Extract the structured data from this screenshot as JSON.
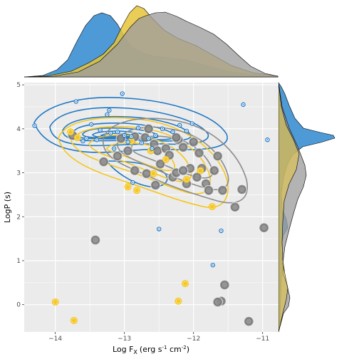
{
  "chart_data": {
    "type": "scatter",
    "title": "",
    "xlabel": "Log F",
    "xlabel_sub": "X",
    "xlabel_unit": "(erg s",
    "xlabel_sup1": "-1",
    "xlabel_mid": " cm",
    "xlabel_sup2": "-2",
    "xlabel_close": ")",
    "ylabel": "LogP (s)",
    "xlim": [
      -14.45,
      -10.77
    ],
    "ylim": [
      -0.62,
      5.05
    ],
    "x_ticks": [
      -14,
      -13,
      -12,
      -11
    ],
    "x_tick_labels": [
      "−14",
      "−13",
      "−12",
      "−11"
    ],
    "y_ticks": [
      0,
      1,
      2,
      3,
      4,
      5
    ],
    "y_tick_labels": [
      "0",
      "1",
      "2",
      "3",
      "4",
      "5"
    ],
    "grid": true,
    "legend": "none",
    "colors": {
      "blue": "#1f77c4",
      "yellow": "#f5c518",
      "gray": "#8c8c8c",
      "panel": "#ebebeb",
      "blue_fill": "#3a8fd1",
      "yellow_fill": "#e6c43a",
      "gray_fill": "#9d9d9d"
    },
    "series": [
      {
        "group": "blue",
        "marker": "small-ring",
        "points": [
          [
            -14.3,
            4.07
          ],
          [
            -13.7,
            4.62
          ],
          [
            -13.03,
            4.8
          ],
          [
            -13.25,
            4.32
          ],
          [
            -13.22,
            4.42
          ],
          [
            -13.48,
            4.1
          ],
          [
            -13.35,
            3.97
          ],
          [
            -13.2,
            3.9
          ],
          [
            -13.1,
            3.93
          ],
          [
            -13.0,
            3.85
          ],
          [
            -12.9,
            3.82
          ],
          [
            -12.8,
            4.02
          ],
          [
            -12.65,
            3.78
          ],
          [
            -12.55,
            3.85
          ],
          [
            -12.45,
            4.0
          ],
          [
            -12.3,
            3.93
          ],
          [
            -12.2,
            4.08
          ],
          [
            -12.1,
            3.95
          ],
          [
            -13.55,
            3.78
          ],
          [
            -13.4,
            3.75
          ],
          [
            -12.75,
            3.68
          ],
          [
            -12.95,
            3.7
          ],
          [
            -11.28,
            4.55
          ],
          [
            -10.93,
            3.75
          ],
          [
            -12.02,
            4.12
          ],
          [
            -12.5,
            1.72
          ],
          [
            -11.6,
            1.68
          ],
          [
            -11.72,
            0.9
          ],
          [
            -12.88,
            2.78
          ],
          [
            -13.6,
            3.72
          ],
          [
            -13.15,
            3.55
          ],
          [
            -12.6,
            3.55
          ]
        ]
      },
      {
        "group": "yellow",
        "marker": "medium-dot",
        "points": [
          [
            -14.0,
            0.06
          ],
          [
            -13.73,
            -0.36
          ],
          [
            -12.22,
            0.08
          ],
          [
            -12.12,
            0.48
          ],
          [
            -11.73,
            2.23
          ],
          [
            -12.95,
            2.68
          ],
          [
            -12.82,
            2.6
          ],
          [
            -12.58,
            2.98
          ],
          [
            -12.62,
            3.5
          ],
          [
            -13.78,
            3.93
          ],
          [
            -13.68,
            3.8
          ],
          [
            -12.9,
            3.72
          ],
          [
            -12.4,
            3.3
          ],
          [
            -12.1,
            2.85
          ],
          [
            -11.9,
            3.05
          ]
        ]
      },
      {
        "group": "gray",
        "marker": "large-ring",
        "points": [
          [
            -13.75,
            3.85
          ],
          [
            -13.42,
            1.47
          ],
          [
            -13.3,
            3.25
          ],
          [
            -13.05,
            3.78
          ],
          [
            -12.95,
            3.5
          ],
          [
            -12.85,
            3.82
          ],
          [
            -12.7,
            3.8
          ],
          [
            -12.65,
            4.0
          ],
          [
            -12.57,
            3.65
          ],
          [
            -12.52,
            3.5
          ],
          [
            -12.48,
            3.2
          ],
          [
            -12.4,
            3.55
          ],
          [
            -12.35,
            3.4
          ],
          [
            -12.3,
            2.9
          ],
          [
            -12.25,
            3.0
          ],
          [
            -12.22,
            3.75
          ],
          [
            -12.15,
            3.58
          ],
          [
            -12.1,
            2.75
          ],
          [
            -12.05,
            3.1
          ],
          [
            -12.0,
            3.7
          ],
          [
            -11.95,
            2.9
          ],
          [
            -11.88,
            3.1
          ],
          [
            -11.82,
            2.75
          ],
          [
            -11.78,
            2.6
          ],
          [
            -11.7,
            3.05
          ],
          [
            -11.65,
            3.38
          ],
          [
            -11.58,
            2.6
          ],
          [
            -11.3,
            2.62
          ],
          [
            -11.4,
            2.22
          ],
          [
            -10.98,
            1.75
          ],
          [
            -11.55,
            0.45
          ],
          [
            -11.6,
            0.08
          ],
          [
            -11.65,
            0.06
          ],
          [
            -11.2,
            -0.38
          ],
          [
            -12.55,
            2.72
          ],
          [
            -12.68,
            2.98
          ],
          [
            -12.85,
            3.05
          ],
          [
            -13.1,
            3.38
          ],
          [
            -12.25,
            3.8
          ],
          [
            -11.92,
            3.45
          ],
          [
            -12.15,
            3.05
          ]
        ]
      }
    ]
  }
}
